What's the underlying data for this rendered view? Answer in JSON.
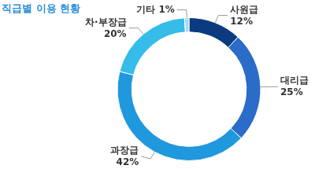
{
  "chart_data": {
    "type": "doughnut",
    "title": "직급별 이용 현황",
    "categories": [
      "사원급",
      "대리급",
      "과장급",
      "차·부장급",
      "기타"
    ],
    "values": [
      12,
      25,
      42,
      20,
      1
    ],
    "value_labels": [
      "12%",
      "25%",
      "42%",
      "20%",
      "1%"
    ],
    "colors": [
      "#0b3a7e",
      "#2a6cc8",
      "#1f98de",
      "#36bce8",
      "#a6dcf2"
    ],
    "data_labels": true
  }
}
